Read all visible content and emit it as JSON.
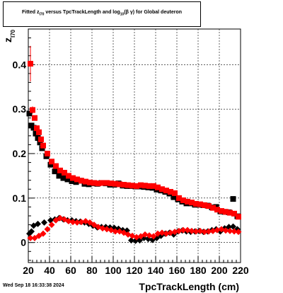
{
  "title": {
    "pre": "Fitted  z",
    "sub1": "I70",
    "mid": " versus TpcTrackLength and log",
    "sub2": "10",
    "post": "(β γ) for Global deuteron"
  },
  "timestamp": "Wed Sep 18 16:33:38 2024",
  "chart_data": {
    "type": "scatter",
    "title": "Fitted z_I70 versus TpcTrackLength and log10(β γ) for Global deuteron",
    "xlabel": "TpcTrackLength (cm)",
    "ylabel": "z",
    "ylabel_sub": "I70",
    "xlim": [
      20,
      220
    ],
    "ylim": [
      -0.045,
      0.48
    ],
    "xticks": [
      20,
      40,
      60,
      80,
      100,
      120,
      140,
      160,
      180,
      200,
      220
    ],
    "yticks": [
      0,
      0.1,
      0.2,
      0.3,
      0.4
    ],
    "ytick_labels": [
      "0",
      "0.1",
      "0.2",
      "0.3",
      "0.4"
    ],
    "grid": true,
    "colors": {
      "black": "#000000",
      "red": "#ff0000"
    },
    "series": [
      {
        "marker": "square",
        "color": "#000000",
        "x": [
          21,
          23,
          25,
          27,
          29,
          31,
          33,
          37,
          41,
          45,
          49,
          53,
          57,
          61,
          65,
          69,
          73,
          77,
          81,
          85,
          89,
          93,
          97,
          101,
          105,
          109,
          113,
          117,
          121,
          125,
          129,
          133,
          137,
          141,
          145,
          149,
          153,
          157,
          161,
          165,
          169,
          173,
          177,
          181,
          185,
          189,
          193,
          197,
          201,
          205,
          209,
          213,
          217
        ],
        "y": [
          0.29,
          0.263,
          0.258,
          0.245,
          0.235,
          0.225,
          0.212,
          0.194,
          0.175,
          0.16,
          0.15,
          0.145,
          0.142,
          0.138,
          0.136,
          0.139,
          0.132,
          0.131,
          0.133,
          0.132,
          0.134,
          0.133,
          0.13,
          0.13,
          0.133,
          0.128,
          0.127,
          0.127,
          0.126,
          0.126,
          0.125,
          0.124,
          0.123,
          0.119,
          0.117,
          0.114,
          0.11,
          0.102,
          0.097,
          0.092,
          0.088,
          0.088,
          0.085,
          0.085,
          0.084,
          0.083,
          0.079,
          0.08,
          0.07,
          0.069,
          0.068,
          0.098,
          0.059
        ],
        "err": [
          0.006,
          0.005,
          0.005,
          0.004,
          0.004,
          0.004,
          0.003,
          0.003,
          0.003,
          0.003,
          0.002,
          0.002,
          0.002,
          0.002,
          0.002,
          0.002,
          0.002,
          0.002,
          0.002,
          0.002,
          0.002,
          0.002,
          0.002,
          0.002,
          0.002,
          0.002,
          0.002,
          0.002,
          0.002,
          0.002,
          0.002,
          0.002,
          0.002,
          0.002,
          0.002,
          0.002,
          0.002,
          0.002,
          0.002,
          0.002,
          0.002,
          0.002,
          0.002,
          0.002,
          0.002,
          0.002,
          0.002,
          0.002,
          0.003,
          0.003,
          0.003,
          0.006,
          0.004
        ]
      },
      {
        "marker": "square",
        "color": "#ff0000",
        "x": [
          22,
          24,
          26,
          28,
          30,
          32,
          34,
          38,
          42,
          46,
          50,
          54,
          58,
          62,
          66,
          70,
          74,
          78,
          82,
          86,
          90,
          94,
          98,
          102,
          106,
          110,
          114,
          118,
          122,
          126,
          130,
          134,
          138,
          142,
          146,
          150,
          154,
          158,
          162,
          166,
          170,
          174,
          178,
          182,
          186,
          190,
          194,
          198,
          202,
          206,
          210,
          214,
          218
        ],
        "y": [
          0.402,
          0.298,
          0.28,
          0.257,
          0.248,
          0.232,
          0.218,
          0.2,
          0.182,
          0.172,
          0.162,
          0.157,
          0.15,
          0.145,
          0.142,
          0.139,
          0.137,
          0.135,
          0.134,
          0.133,
          0.134,
          0.134,
          0.133,
          0.132,
          0.131,
          0.13,
          0.129,
          0.128,
          0.127,
          0.129,
          0.128,
          0.127,
          0.127,
          0.124,
          0.12,
          0.117,
          0.114,
          0.111,
          0.1,
          0.095,
          0.092,
          0.09,
          0.087,
          0.086,
          0.084,
          0.082,
          0.078,
          0.074,
          0.071,
          0.069,
          0.067,
          0.065,
          0.058
        ],
        "err": [
          0.04,
          0.008,
          0.006,
          0.005,
          0.005,
          0.004,
          0.004,
          0.003,
          0.003,
          0.003,
          0.003,
          0.002,
          0.002,
          0.002,
          0.002,
          0.002,
          0.002,
          0.002,
          0.002,
          0.002,
          0.002,
          0.002,
          0.002,
          0.002,
          0.002,
          0.002,
          0.002,
          0.002,
          0.002,
          0.002,
          0.002,
          0.002,
          0.002,
          0.002,
          0.002,
          0.002,
          0.002,
          0.002,
          0.002,
          0.002,
          0.002,
          0.002,
          0.002,
          0.002,
          0.002,
          0.002,
          0.002,
          0.002,
          0.003,
          0.003,
          0.003,
          0.003,
          0.003
        ]
      },
      {
        "marker": "diamond",
        "color": "#000000",
        "x": [
          21,
          23,
          25,
          29,
          35,
          41,
          45,
          49,
          53,
          57,
          61,
          65,
          69,
          73,
          77,
          81,
          85,
          89,
          93,
          97,
          101,
          105,
          109,
          113,
          117,
          121,
          125,
          129,
          133,
          137,
          141,
          145,
          149,
          153,
          157,
          161,
          165,
          169,
          173,
          177,
          181,
          185,
          189,
          193,
          197,
          201,
          205,
          209,
          213,
          217
        ],
        "y": [
          0.02,
          0.025,
          0.038,
          0.042,
          0.045,
          0.05,
          0.052,
          0.055,
          0.052,
          0.05,
          0.05,
          0.048,
          0.047,
          0.045,
          0.042,
          0.038,
          0.034,
          0.035,
          0.035,
          0.034,
          0.033,
          0.031,
          0.028,
          0.027,
          0.005,
          0.004,
          0.005,
          0.01,
          0.008,
          0.006,
          0.01,
          0.015,
          0.02,
          0.022,
          0.018,
          0.025,
          0.027,
          0.025,
          0.024,
          0.025,
          0.026,
          0.024,
          0.025,
          0.028,
          0.03,
          0.025,
          0.032,
          0.035,
          0.036,
          0.03
        ],
        "err": [
          0.004,
          0.003,
          0.003,
          0.003,
          0.003,
          0.003,
          0.003,
          0.003,
          0.003,
          0.003,
          0.003,
          0.003,
          0.003,
          0.003,
          0.003,
          0.003,
          0.003,
          0.003,
          0.003,
          0.003,
          0.003,
          0.003,
          0.003,
          0.003,
          0.003,
          0.003,
          0.003,
          0.003,
          0.003,
          0.003,
          0.003,
          0.003,
          0.003,
          0.003,
          0.003,
          0.003,
          0.003,
          0.003,
          0.003,
          0.003,
          0.003,
          0.003,
          0.003,
          0.003,
          0.003,
          0.003,
          0.003,
          0.003,
          0.003,
          0.003
        ]
      },
      {
        "marker": "diamond",
        "color": "#ff0000",
        "x": [
          22,
          26,
          30,
          34,
          38,
          42,
          46,
          50,
          54,
          58,
          62,
          66,
          70,
          74,
          78,
          82,
          86,
          90,
          94,
          98,
          102,
          106,
          110,
          114,
          118,
          122,
          126,
          130,
          134,
          138,
          142,
          146,
          150,
          154,
          158,
          162,
          166,
          170,
          174,
          178,
          182,
          186,
          190,
          194,
          198,
          202,
          206,
          210,
          214,
          218
        ],
        "y": [
          0.01,
          0.01,
          0.015,
          0.02,
          0.03,
          0.04,
          0.05,
          0.055,
          0.052,
          0.048,
          0.046,
          0.045,
          0.046,
          0.048,
          0.045,
          0.04,
          0.035,
          0.032,
          0.03,
          0.028,
          0.025,
          0.025,
          0.022,
          0.018,
          0.015,
          0.012,
          0.014,
          0.018,
          0.016,
          0.014,
          0.02,
          0.022,
          0.02,
          0.022,
          0.024,
          0.026,
          0.028,
          0.028,
          0.026,
          0.025,
          0.026,
          0.024,
          0.025,
          0.026,
          0.028,
          0.03,
          0.027,
          0.026,
          0.025,
          0.024
        ],
        "err": [
          0.004,
          0.003,
          0.003,
          0.003,
          0.003,
          0.003,
          0.003,
          0.003,
          0.003,
          0.003,
          0.003,
          0.003,
          0.003,
          0.003,
          0.003,
          0.003,
          0.003,
          0.003,
          0.003,
          0.003,
          0.003,
          0.003,
          0.003,
          0.003,
          0.003,
          0.003,
          0.003,
          0.003,
          0.003,
          0.003,
          0.003,
          0.003,
          0.003,
          0.003,
          0.003,
          0.003,
          0.003,
          0.003,
          0.003,
          0.003,
          0.003,
          0.003,
          0.003,
          0.003,
          0.003,
          0.003,
          0.003,
          0.003,
          0.003,
          0.003
        ]
      }
    ]
  }
}
